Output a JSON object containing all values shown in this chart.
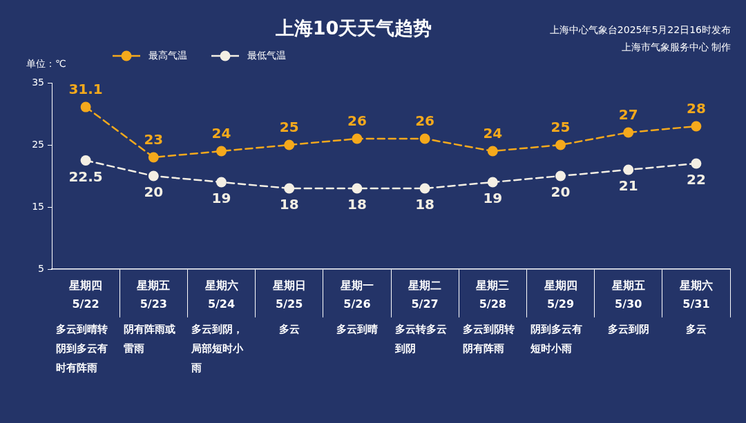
{
  "chart_data": {
    "type": "line",
    "title": "上海10天天气趋势",
    "ylabel": "单位：℃",
    "annotations": [
      "上海中心气象台2025年5月22日16时发布",
      "上海市气象服务中心 制作"
    ],
    "categories": [
      "星期四\n5/22\n多云到晴转阴到多云有时有阵雨",
      "星期五\n5/23\n阴有阵雨或雷雨",
      "星期六\n5/24\n多云到阴，局部短时小雨",
      "星期日\n5/25\n多云",
      "星期一\n5/26\n多云到晴",
      "星期二\n5/27\n多云转多云到阴",
      "星期三\n5/28\n多云到阴转阴有阵雨",
      "星期四\n5/29\n阴到多云有短时小雨",
      "星期五\n5/30\n多云到阴",
      "星期六\n5/31\n多云"
    ],
    "series": [
      {
        "name": "最高气温",
        "color": "#f5a91c",
        "values": [
          31.1,
          23,
          24,
          25,
          26,
          26,
          24,
          25,
          27,
          28
        ]
      },
      {
        "name": "最低气温",
        "color": "#f4efe4",
        "values": [
          22.5,
          20,
          19,
          18,
          18,
          18,
          19,
          20,
          21,
          22
        ]
      }
    ],
    "ylim": [
      5,
      35
    ],
    "yticks": [
      5,
      15,
      25,
      35
    ],
    "legend": "top left",
    "marker": "circle",
    "line_style": "dashed",
    "data_labels": true
  }
}
